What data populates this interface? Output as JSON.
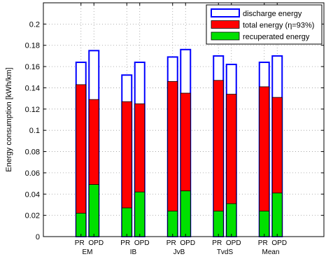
{
  "chart_data": {
    "type": "bar",
    "ylabel": "Energy consumption [kWh/km]",
    "ylim": [
      0,
      0.22
    ],
    "yticks": [
      0,
      0.02,
      0.04,
      0.06,
      0.08,
      0.1,
      0.12,
      0.14,
      0.16,
      0.18,
      0.2
    ],
    "ytick_labels": [
      "0",
      "0.02",
      "0.04",
      "0.06",
      "0.08",
      "0.1",
      "0.12",
      "0.14",
      "0.16",
      "0.18",
      "0.2"
    ],
    "grid": true,
    "legend_position": "top-right",
    "categories": [
      "EM",
      "IB",
      "JvB",
      "TvdS",
      "Mean"
    ],
    "sub_categories": [
      "PR",
      "OPD"
    ],
    "series": [
      {
        "name": "discharge energy",
        "style": "outline",
        "color": "#0000ff",
        "values": [
          [
            0.164,
            0.175
          ],
          [
            0.152,
            0.164
          ],
          [
            0.169,
            0.176
          ],
          [
            0.17,
            0.162
          ],
          [
            0.164,
            0.17
          ]
        ]
      },
      {
        "name": "total energy (η=93%)",
        "style": "fill",
        "color": "#ff0000",
        "values": [
          [
            0.143,
            0.129
          ],
          [
            0.127,
            0.125
          ],
          [
            0.146,
            0.135
          ],
          [
            0.147,
            0.134
          ],
          [
            0.141,
            0.131
          ]
        ]
      },
      {
        "name": "recuperated energy",
        "style": "fill",
        "color": "#00e000",
        "values": [
          [
            0.022,
            0.049
          ],
          [
            0.027,
            0.042
          ],
          [
            0.024,
            0.043
          ],
          [
            0.024,
            0.031
          ],
          [
            0.024,
            0.041
          ]
        ]
      }
    ]
  }
}
